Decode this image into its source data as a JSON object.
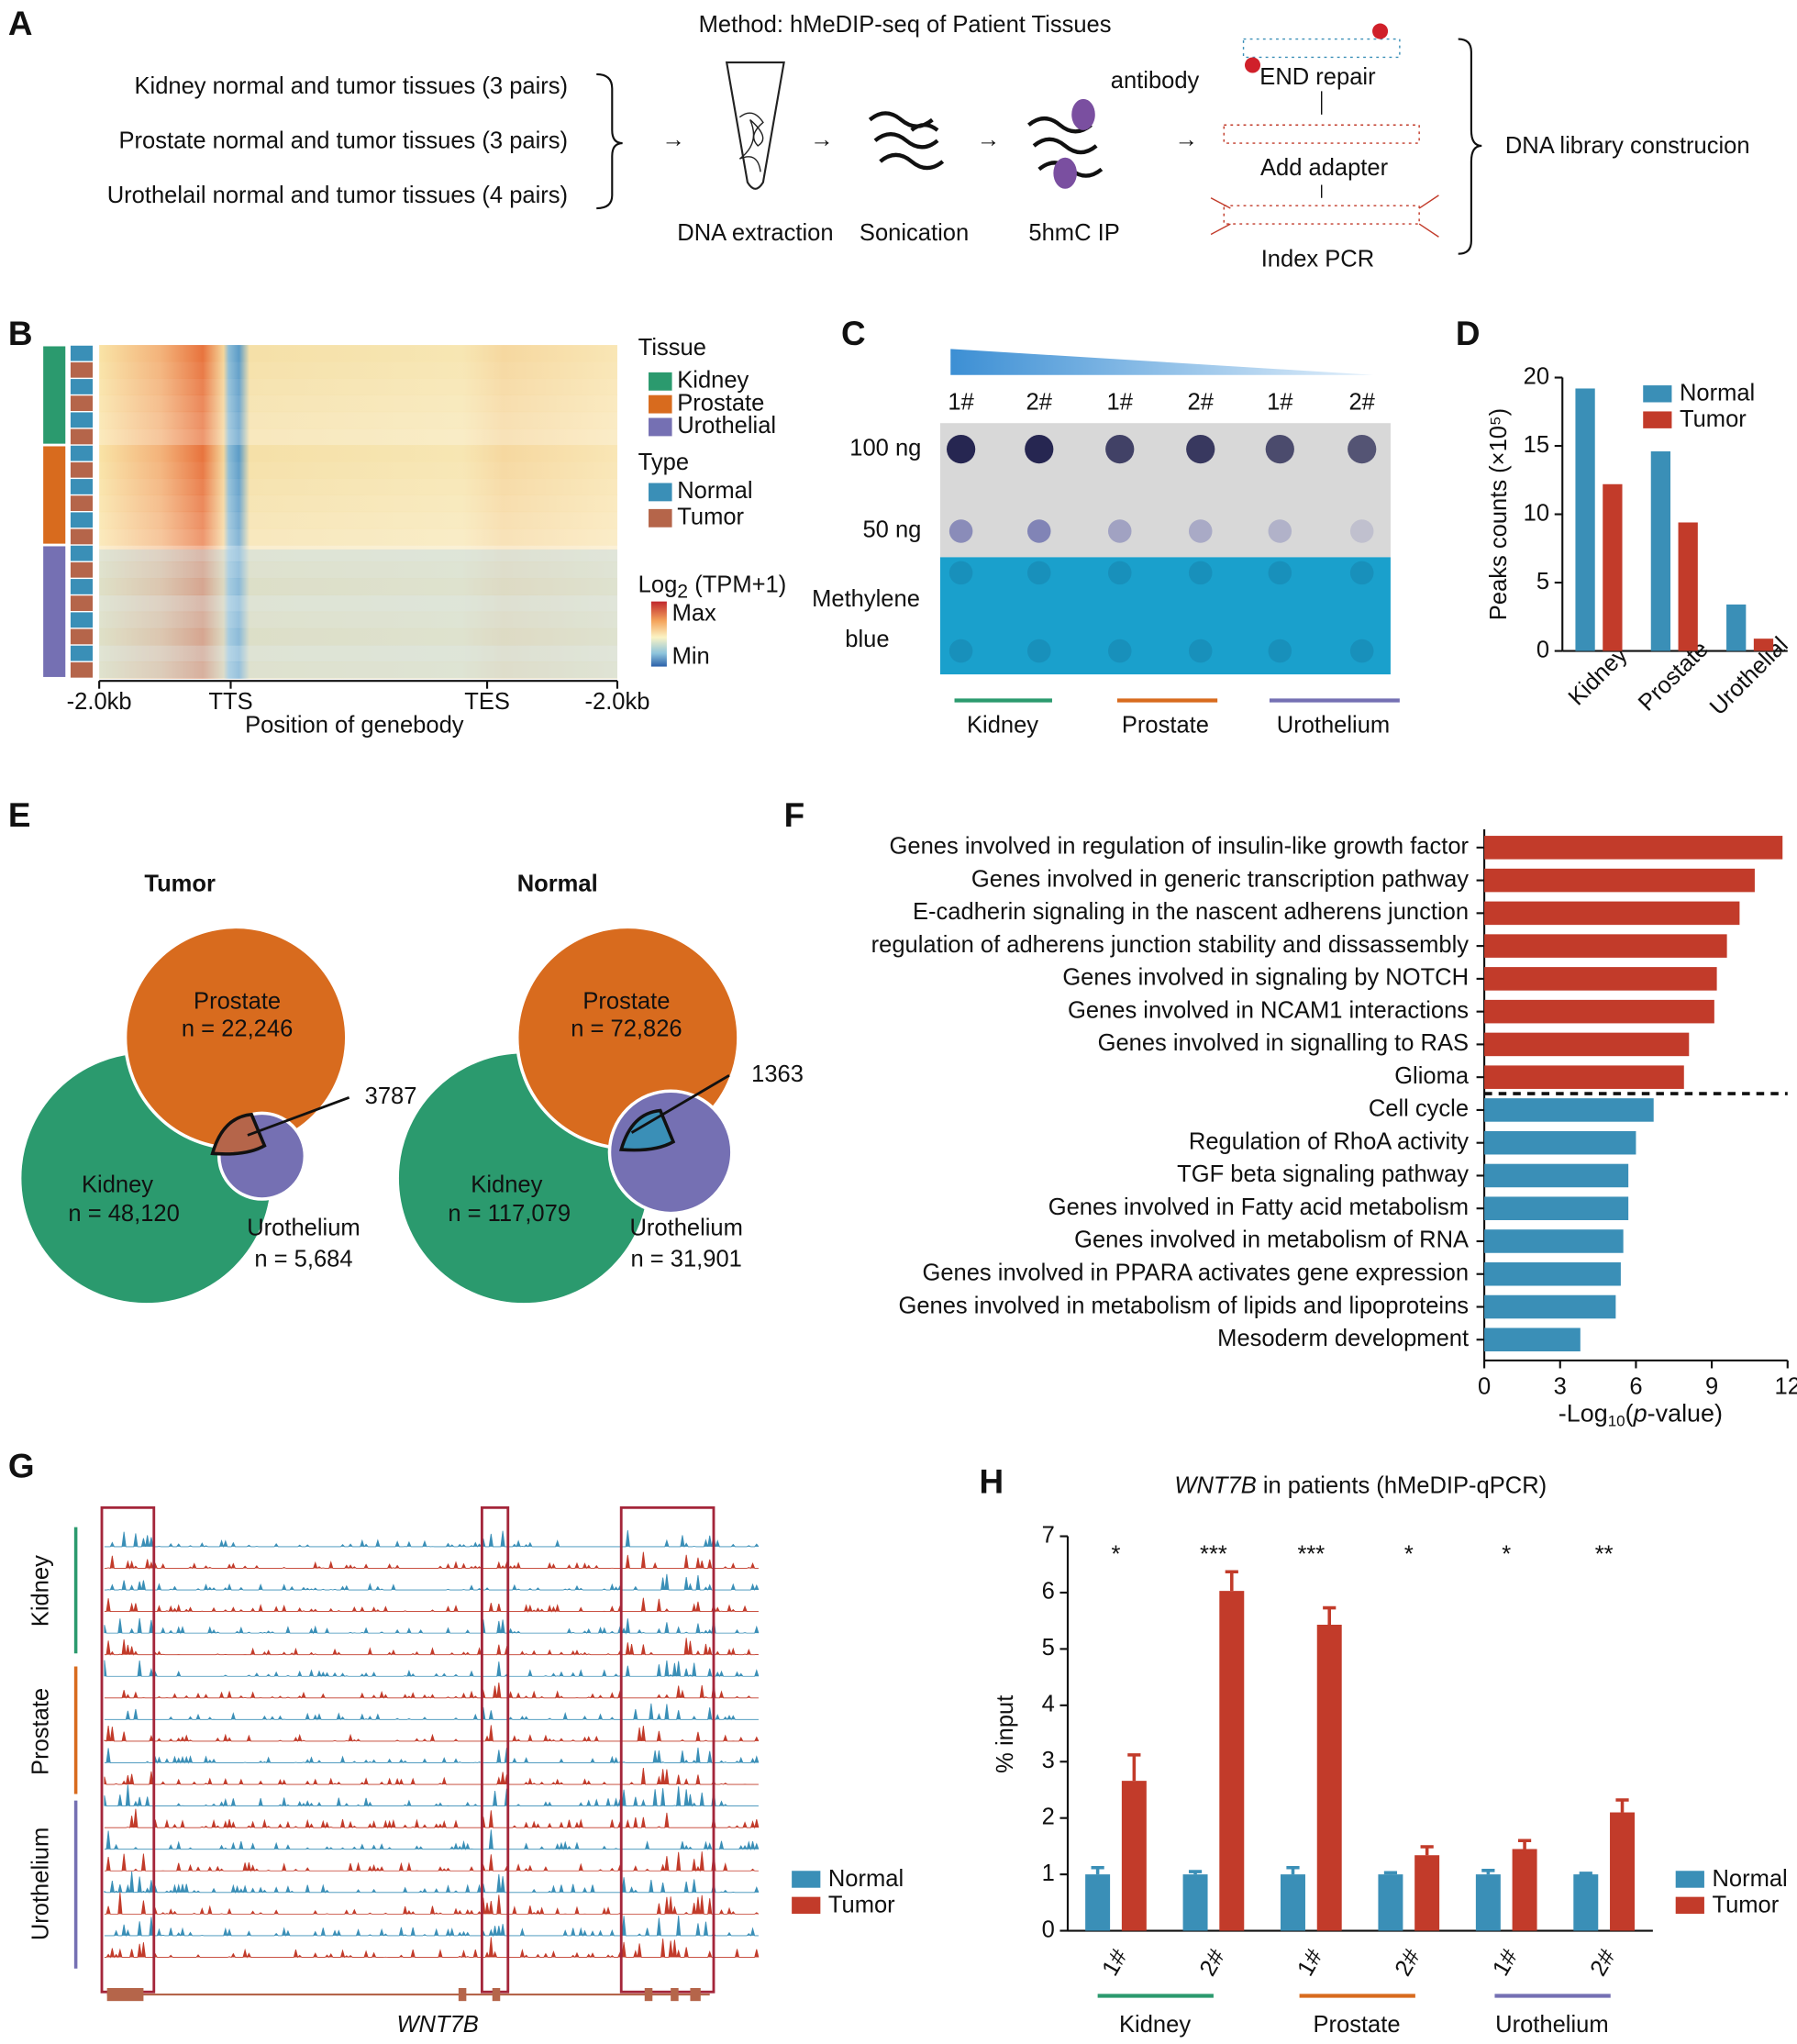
{
  "panel_labels": [
    "A",
    "B",
    "C",
    "D",
    "E",
    "F",
    "G",
    "H"
  ],
  "a": {
    "title": "Method: hMeDIP-seq of Patient Tissues",
    "samples": [
      "Kidney normal and tumor tissues (3 pairs)",
      "Prostate normal and tumor tissues (3 pairs)",
      "Urothelail normal and tumor tissues (4 pairs)"
    ],
    "steps": [
      "DNA extraction",
      "Sonication",
      "5hmC IP"
    ],
    "antibody": "antibody",
    "library_steps": [
      "END repair",
      "Add adapter",
      "Index PCR"
    ],
    "result": "DNA library construcion"
  },
  "b": {
    "legend_tissue_title": "Tissue",
    "tissues": [
      {
        "name": "Kidney",
        "color": "#2b9a6e"
      },
      {
        "name": "Prostate",
        "color": "#d86b1e"
      },
      {
        "name": "Urothelial",
        "color": "#7570b3"
      }
    ],
    "legend_type_title": "Type",
    "types": [
      {
        "name": "Normal",
        "color": "#3a8fb7"
      },
      {
        "name": "Tumor",
        "color": "#b5654a"
      }
    ],
    "scale_title": [
      "Log",
      "2",
      " (TPM+1)"
    ],
    "scale_max": "Max",
    "scale_min": "Min",
    "xticks": [
      "-2.0kb",
      "TTS",
      "TES",
      "-2.0kb"
    ],
    "xlabel": "Position of genebody"
  },
  "c": {
    "lanes": [
      "1#",
      "2#",
      "1#",
      "2#",
      "1#",
      "2#"
    ],
    "rows": [
      "100 ng",
      "50 ng"
    ],
    "stain": [
      "Methylene",
      "blue"
    ],
    "groups": [
      {
        "name": "Kidney",
        "color": "#2b9a6e"
      },
      {
        "name": "Prostate",
        "color": "#d86b1e"
      },
      {
        "name": "Urothelium",
        "color": "#7570b3"
      }
    ]
  },
  "e": {
    "venns": [
      {
        "title": "Tumor",
        "color": "#b5654a",
        "sets": [
          "Prostate",
          "Kidney",
          "Urothelium"
        ],
        "counts": [
          "n = 22,246",
          "n = 48,120",
          "n = 5,684"
        ],
        "overlap": "3787"
      },
      {
        "title": "Normal",
        "color": "#3a8fb7",
        "sets": [
          "Prostate",
          "Kidney",
          "Urothelium"
        ],
        "counts": [
          "n = 72,826",
          "n = 117,079",
          "n = 31,901"
        ],
        "overlap": "1363"
      }
    ]
  },
  "g": {
    "tissues": [
      {
        "name": "Kidney",
        "color": "#2b9a6e"
      },
      {
        "name": "Prostate",
        "color": "#d86b1e"
      },
      {
        "name": "Urothelium",
        "color": "#7570b3"
      }
    ],
    "gene": "WNT7B",
    "legend": [
      {
        "name": "Normal",
        "color": "#3a8fb7"
      },
      {
        "name": "Tumor",
        "color": "#c23b2a"
      }
    ]
  },
  "chart_data": [
    {
      "type": "bar",
      "ylabel": "Peaks counts (×10⁵)",
      "categories": [
        "Kidney",
        "Prostate",
        "Urothelial"
      ],
      "series": [
        {
          "name": "Normal",
          "color": "#3a8fb7",
          "values": [
            19.2,
            14.6,
            3.4
          ]
        },
        {
          "name": "Tumor",
          "color": "#c23b2a",
          "values": [
            12.2,
            9.4,
            0.9
          ]
        }
      ],
      "ylim": [
        0,
        20
      ],
      "yticks": [
        0,
        5,
        10,
        15,
        20
      ],
      "legend": "upper right"
    },
    {
      "type": "barh",
      "xlabel": [
        "-Log",
        "10",
        "(",
        "p",
        "-value)"
      ],
      "categories": [
        "Genes involved in regulation of insulin-like growth factor",
        "Genes involved in generic transcription pathway",
        "E-cadherin signaling in the nascent adherens junction",
        "regulation of adherens junction stability and dissassembly",
        "Genes involved in signaling by NOTCH",
        "Genes involved in NCAM1 interactions",
        "Genes involved in signalling to RAS",
        "Glioma",
        "Cell cycle",
        "Regulation of RhoA activity",
        "TGF beta signaling pathway",
        "Genes involved in Fatty acid metabolism",
        "Genes involved in metabolism of RNA",
        "Genes involved in PPARA activates gene expression",
        "Genes involved in metabolism of lipids and lipoproteins",
        "Mesoderm development"
      ],
      "values": [
        11.8,
        10.7,
        10.1,
        9.6,
        9.2,
        9.1,
        8.1,
        7.9,
        6.7,
        6.0,
        5.7,
        5.7,
        5.5,
        5.4,
        5.2,
        3.8
      ],
      "colors": [
        "#c23b2a",
        "#c23b2a",
        "#c23b2a",
        "#c23b2a",
        "#c23b2a",
        "#c23b2a",
        "#c23b2a",
        "#c23b2a",
        "#3a8fb7",
        "#3a8fb7",
        "#3a8fb7",
        "#3a8fb7",
        "#3a8fb7",
        "#3a8fb7",
        "#3a8fb7",
        "#3a8fb7"
      ],
      "xlim": [
        0,
        12
      ],
      "xticks": [
        0,
        3,
        6,
        9,
        12
      ]
    },
    {
      "type": "bar",
      "title": [
        "WNT7B",
        " in patients (hMeDIP-qPCR)"
      ],
      "ylabel": "% input",
      "categories": [
        "1#",
        "2#",
        "1#",
        "2#",
        "1#",
        "2#"
      ],
      "groups": [
        {
          "name": "Kidney",
          "color": "#2b9a6e"
        },
        {
          "name": "Prostate",
          "color": "#d86b1e"
        },
        {
          "name": "Urothelium",
          "color": "#7570b3"
        }
      ],
      "series": [
        {
          "name": "Normal",
          "color": "#3a8fb7",
          "values": [
            1.0,
            1.0,
            1.0,
            1.0,
            1.0,
            1.0
          ],
          "errors": [
            0.12,
            0.05,
            0.12,
            0.03,
            0.07,
            0.02
          ]
        },
        {
          "name": "Tumor",
          "color": "#c23b2a",
          "values": [
            2.66,
            6.03,
            5.43,
            1.34,
            1.45,
            2.1
          ],
          "errors": [
            0.46,
            0.34,
            0.3,
            0.15,
            0.15,
            0.22
          ]
        }
      ],
      "annotations": [
        "*",
        "***",
        "***",
        "*",
        "*",
        "**"
      ],
      "ylim": [
        0,
        7
      ],
      "yticks": [
        0,
        1,
        2,
        3,
        4,
        5,
        6,
        7
      ],
      "legend": "lower right"
    }
  ]
}
